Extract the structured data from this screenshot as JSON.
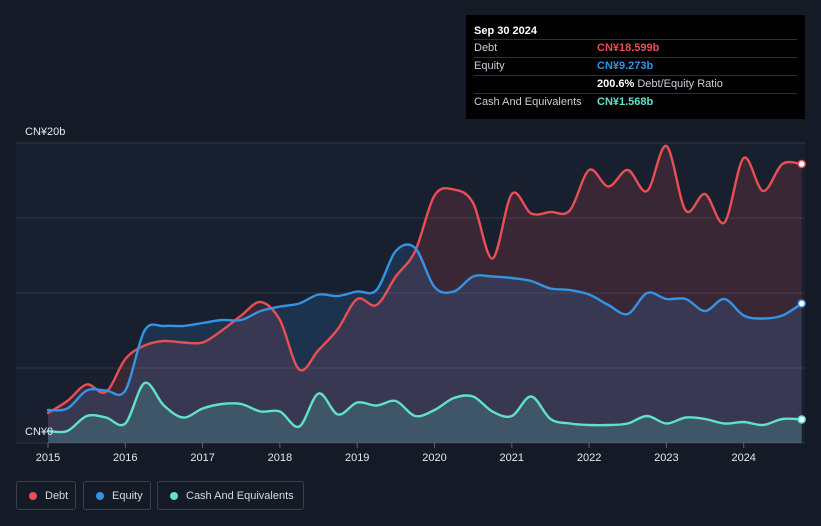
{
  "tooltip": {
    "date": "Sep 30 2024",
    "debt_label": "Debt",
    "debt_value": "CN¥18.599b",
    "equity_label": "Equity",
    "equity_value": "CN¥9.273b",
    "ratio_value": "200.6%",
    "ratio_label": "Debt/Equity Ratio",
    "cash_label": "Cash And Equivalents",
    "cash_value": "CN¥1.568b"
  },
  "legend": {
    "debt": "Debt",
    "equity": "Equity",
    "cash": "Cash And Equivalents"
  },
  "colors": {
    "debt": "#e84f54",
    "equity": "#3593e4",
    "cash": "#5fe1cb",
    "background": "#141b26",
    "plot_background": "#182030"
  },
  "chart_data": {
    "type": "area",
    "unit": "CN¥b",
    "y_top_label": "CN¥20b",
    "y_bottom_label": "CN¥0",
    "ylim": [
      0,
      20
    ],
    "xlim": [
      2015.0,
      2024.75
    ],
    "x_ticks": [
      "2015",
      "2016",
      "2017",
      "2018",
      "2019",
      "2020",
      "2021",
      "2022",
      "2023",
      "2024"
    ],
    "gridlines": [
      0,
      5,
      10,
      15,
      20
    ],
    "series": [
      {
        "name": "Debt",
        "x": [
          2015.0,
          2015.25,
          2015.5,
          2015.75,
          2016.0,
          2016.25,
          2016.5,
          2016.75,
          2017.0,
          2017.25,
          2017.5,
          2017.75,
          2018.0,
          2018.25,
          2018.5,
          2018.75,
          2019.0,
          2019.25,
          2019.5,
          2019.75,
          2020.0,
          2020.25,
          2020.5,
          2020.75,
          2021.0,
          2021.25,
          2021.5,
          2021.75,
          2022.0,
          2022.25,
          2022.5,
          2022.75,
          2023.0,
          2023.25,
          2023.5,
          2023.75,
          2024.0,
          2024.25,
          2024.5,
          2024.75
        ],
        "values": [
          2.0,
          2.8,
          3.9,
          3.4,
          5.6,
          6.5,
          6.8,
          6.7,
          6.7,
          7.5,
          8.5,
          9.4,
          8.2,
          4.9,
          6.2,
          7.6,
          9.6,
          9.2,
          11.1,
          12.8,
          16.5,
          16.9,
          16.0,
          12.3,
          16.6,
          15.3,
          15.4,
          15.5,
          18.2,
          17.1,
          18.2,
          16.8,
          19.8,
          15.5,
          16.6,
          14.7,
          19.0,
          16.8,
          18.6,
          18.6
        ]
      },
      {
        "name": "Equity",
        "x": [
          2015.0,
          2015.25,
          2015.5,
          2015.75,
          2016.0,
          2016.25,
          2016.5,
          2016.75,
          2017.0,
          2017.25,
          2017.5,
          2017.75,
          2018.0,
          2018.25,
          2018.5,
          2018.75,
          2019.0,
          2019.25,
          2019.5,
          2019.75,
          2020.0,
          2020.25,
          2020.5,
          2020.75,
          2021.0,
          2021.25,
          2021.5,
          2021.75,
          2022.0,
          2022.25,
          2022.5,
          2022.75,
          2023.0,
          2023.25,
          2023.5,
          2023.75,
          2024.0,
          2024.25,
          2024.5,
          2024.75
        ],
        "values": [
          2.2,
          2.3,
          3.5,
          3.5,
          3.5,
          7.5,
          7.8,
          7.8,
          8.0,
          8.2,
          8.2,
          8.8,
          9.1,
          9.3,
          9.9,
          9.8,
          10.1,
          10.2,
          12.8,
          13.0,
          10.4,
          10.1,
          11.1,
          11.1,
          11.0,
          10.8,
          10.3,
          10.2,
          9.9,
          9.2,
          8.6,
          10.0,
          9.6,
          9.6,
          8.8,
          9.6,
          8.5,
          8.3,
          8.5,
          9.3
        ]
      },
      {
        "name": "Cash And Equivalents",
        "x": [
          2015.0,
          2015.25,
          2015.5,
          2015.75,
          2016.0,
          2016.25,
          2016.5,
          2016.75,
          2017.0,
          2017.25,
          2017.5,
          2017.75,
          2018.0,
          2018.25,
          2018.5,
          2018.75,
          2019.0,
          2019.25,
          2019.5,
          2019.75,
          2020.0,
          2020.25,
          2020.5,
          2020.75,
          2021.0,
          2021.25,
          2021.5,
          2021.75,
          2022.0,
          2022.25,
          2022.5,
          2022.75,
          2023.0,
          2023.25,
          2023.5,
          2023.75,
          2024.0,
          2024.25,
          2024.5,
          2024.75
        ],
        "values": [
          0.8,
          0.8,
          1.8,
          1.7,
          1.3,
          4.0,
          2.5,
          1.7,
          2.3,
          2.6,
          2.6,
          2.1,
          2.1,
          1.1,
          3.3,
          1.9,
          2.7,
          2.5,
          2.8,
          1.8,
          2.2,
          3.0,
          3.1,
          2.1,
          1.8,
          3.1,
          1.6,
          1.3,
          1.2,
          1.2,
          1.3,
          1.8,
          1.3,
          1.7,
          1.6,
          1.3,
          1.4,
          1.2,
          1.6,
          1.568
        ]
      }
    ]
  }
}
